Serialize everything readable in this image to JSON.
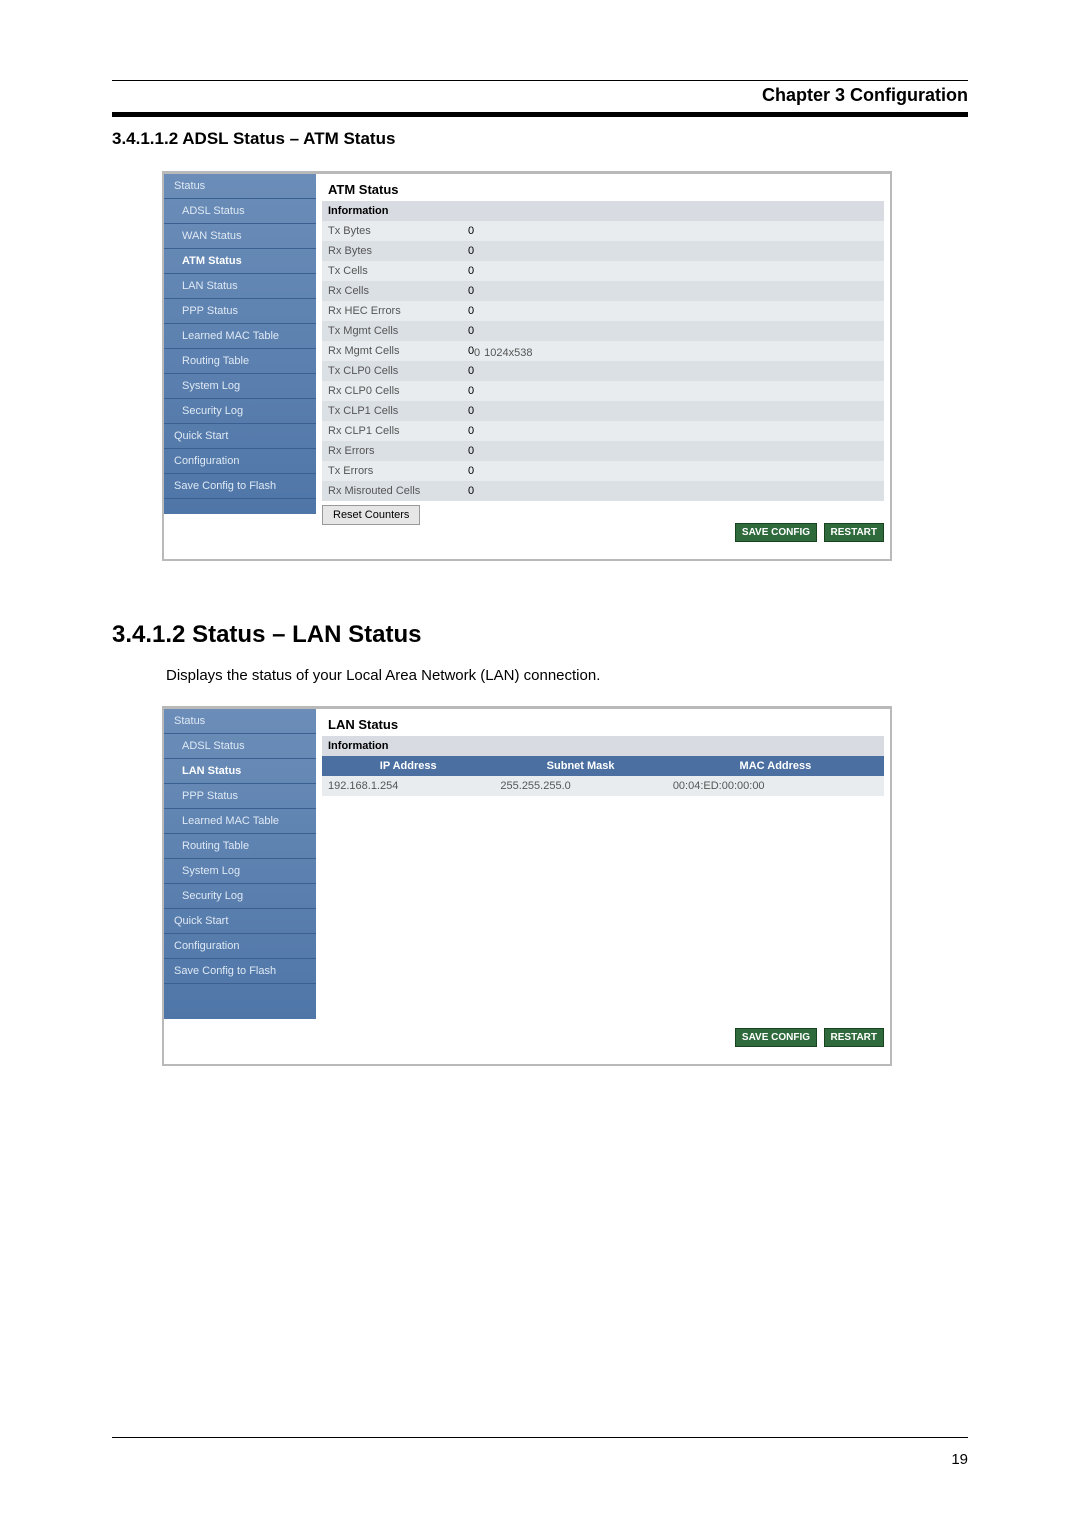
{
  "chapter": {
    "title": "Chapter 3 Configuration"
  },
  "section1": {
    "number": "3.4.1.1.2",
    "title": "ADSL Status – ATM Status"
  },
  "section2": {
    "number": "3.4.1.2",
    "title": "Status – LAN Status",
    "body": "Displays the status of your Local Area Network (LAN) connection."
  },
  "sidebar_atm": {
    "top": "Status",
    "items": [
      "ADSL Status",
      "WAN Status",
      "ATM Status",
      "LAN Status",
      "PPP Status",
      "Learned MAC Table",
      "Routing Table",
      "System Log",
      "Security Log"
    ],
    "bottom": [
      "Quick Start",
      "Configuration",
      "Save Config to Flash"
    ]
  },
  "sidebar_lan": {
    "top": "Status",
    "items": [
      "ADSL Status",
      "LAN Status",
      "PPP Status",
      "Learned MAC Table",
      "Routing Table",
      "System Log",
      "Security Log"
    ],
    "bottom": [
      "Quick Start",
      "Configuration",
      "Save Config to Flash"
    ]
  },
  "atm": {
    "title": "ATM Status",
    "subtitle": "Information",
    "rows": [
      {
        "k": "Tx Bytes",
        "v": "0"
      },
      {
        "k": "Rx Bytes",
        "v": "0"
      },
      {
        "k": "Tx Cells",
        "v": "0"
      },
      {
        "k": "Rx Cells",
        "v": "0"
      },
      {
        "k": "Rx HEC Errors",
        "v": "0"
      },
      {
        "k": "Tx Mgmt Cells",
        "v": "0"
      },
      {
        "k": "Rx Mgmt Cells",
        "v": "0"
      },
      {
        "k": "Tx CLP0 Cells",
        "v": "0"
      },
      {
        "k": "Rx CLP0 Cells",
        "v": "0"
      },
      {
        "k": "Tx CLP1 Cells",
        "v": "0"
      },
      {
        "k": "Rx CLP1 Cells",
        "v": "0"
      },
      {
        "k": "Rx Errors",
        "v": "0"
      },
      {
        "k": "Tx Errors",
        "v": "0"
      },
      {
        "k": "Rx Misrouted Cells",
        "v": "0"
      }
    ],
    "reset": "Reset Counters"
  },
  "overlay_dim": "1024x538",
  "lan": {
    "title": "LAN Status",
    "subtitle": "Information",
    "columns": [
      "IP Address",
      "Subnet Mask",
      "MAC Address"
    ],
    "row": [
      "192.168.1.254",
      "255.255.255.0",
      "00:04:ED:00:00:00"
    ]
  },
  "buttons": {
    "save": "SAVE CONFIG",
    "restart": "RESTART"
  },
  "page_number": "19",
  "colors": {
    "sidebar_top": "#6b8db8",
    "sidebar_bottom": "#4f76a8",
    "row_even": "#e8ecef",
    "row_odd": "#dbe0e5",
    "pill_bg": "#2e6a3c",
    "lan_head_bg": "#4a6fa0"
  }
}
